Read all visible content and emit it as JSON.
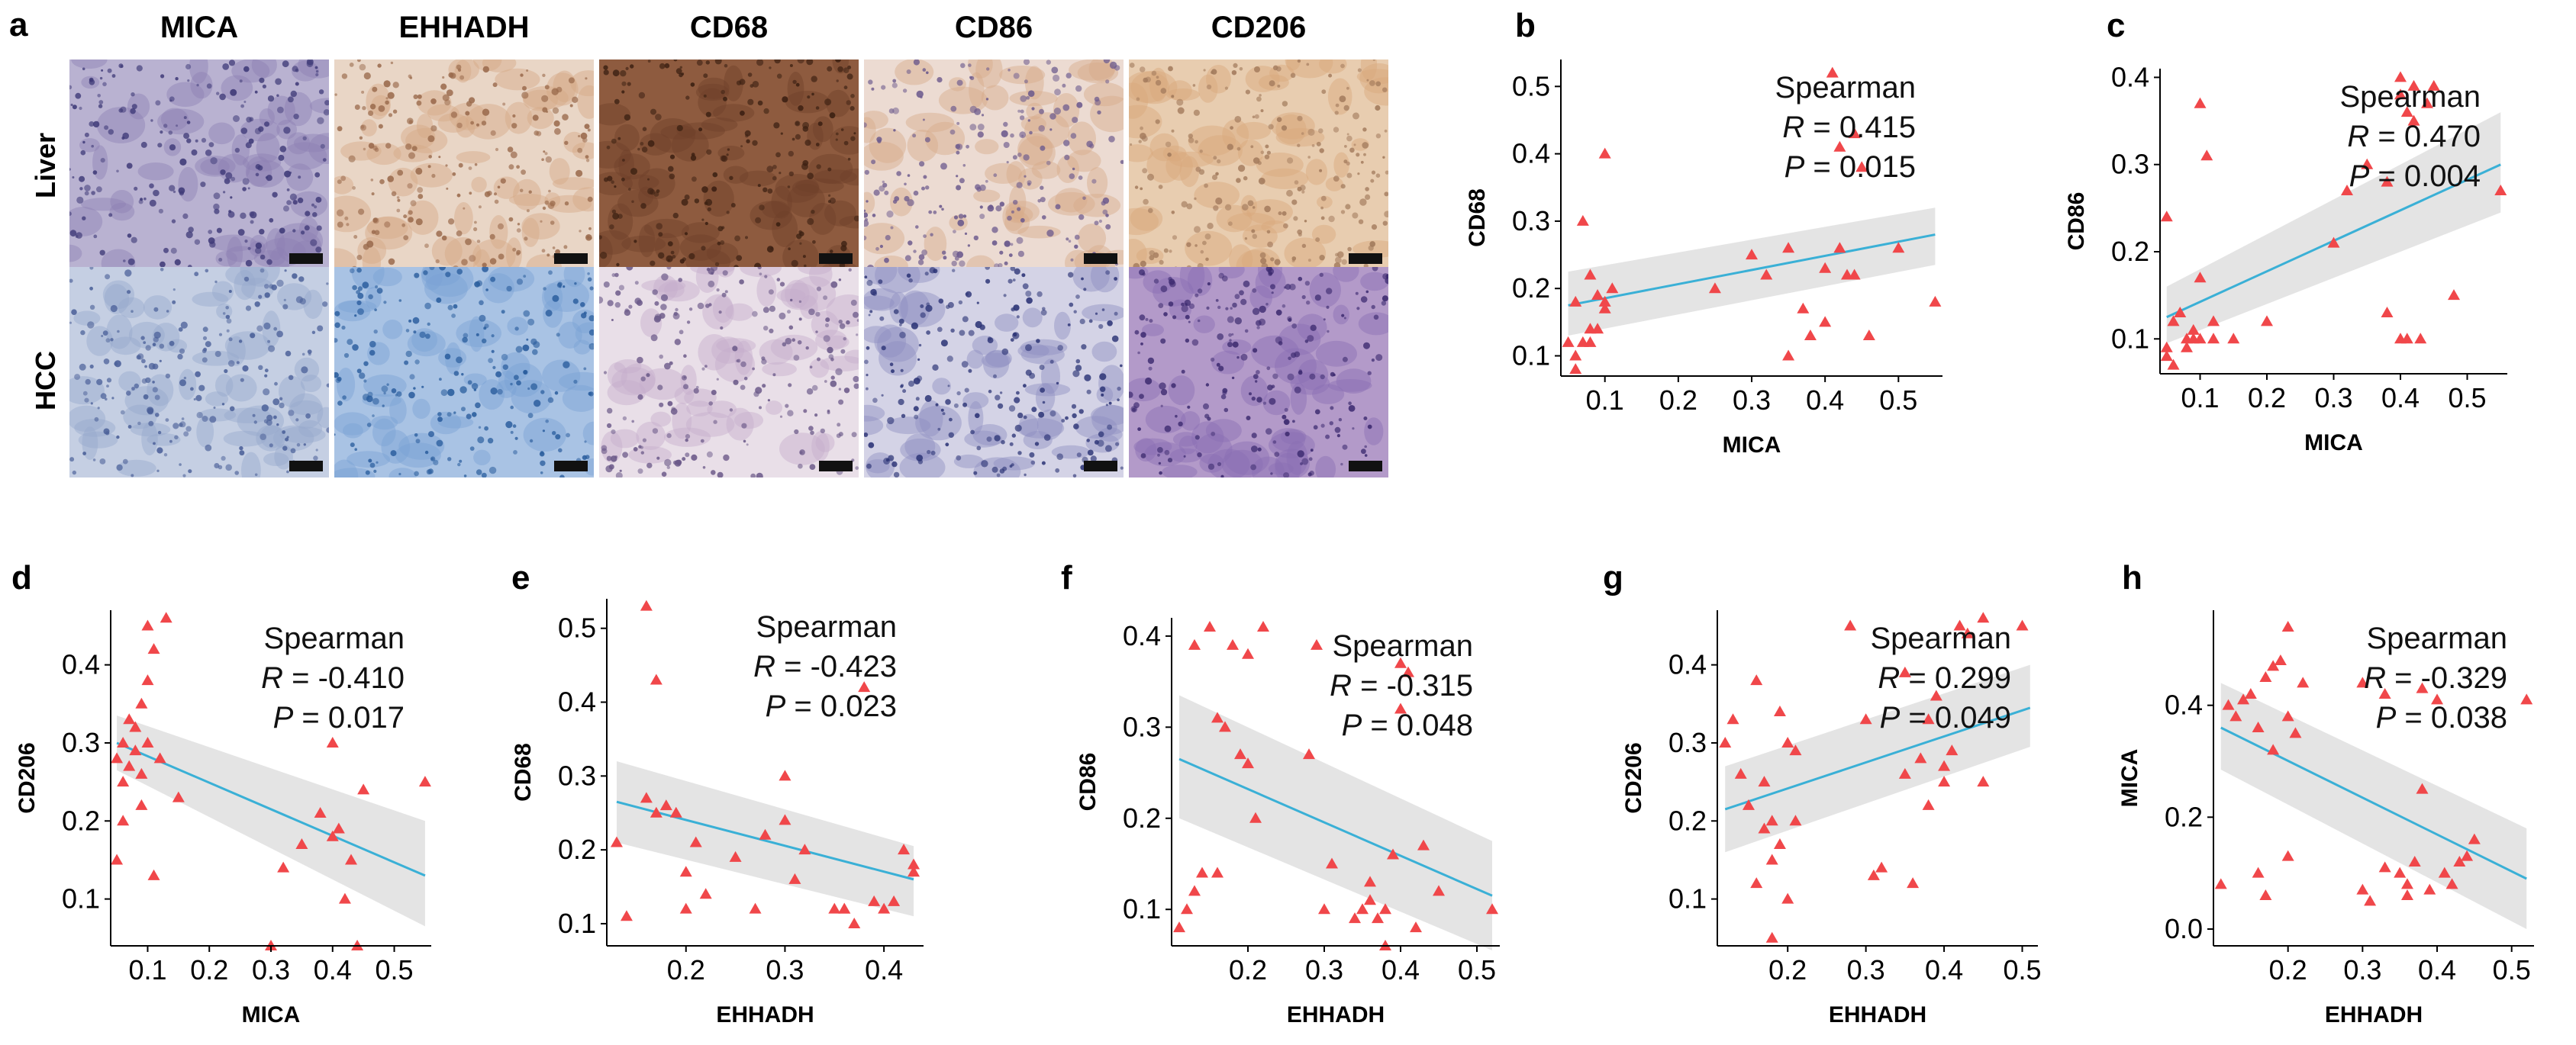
{
  "panel_a": {
    "letter": "a",
    "columns": [
      "MICA",
      "EHHADH",
      "CD68",
      "CD86",
      "CD206"
    ],
    "rows": [
      "Liver",
      "HCC"
    ],
    "tile_colors": {
      "Liver": [
        {
          "base": "#b9b2d1",
          "spot": "#3f3a78",
          "mid": "#8d80b3"
        },
        {
          "base": "#e9d6c6",
          "spot": "#9a6a4c",
          "mid": "#d4a885"
        },
        {
          "base": "#8e5b3f",
          "spot": "#3b2012",
          "mid": "#6e412a"
        },
        {
          "base": "#ecdbd2",
          "spot": "#6c5a8d",
          "mid": "#d6aa8a"
        },
        {
          "base": "#e8cdb0",
          "spot": "#a27a5c",
          "mid": "#d9a97c"
        }
      ],
      "HCC": [
        {
          "base": "#c5cfe3",
          "spot": "#4a5f98",
          "mid": "#96a8cd"
        },
        {
          "base": "#a9c3e4",
          "spot": "#2a5d9d",
          "mid": "#7ba2d4"
        },
        {
          "base": "#e9dfe8",
          "spot": "#6a5888",
          "mid": "#c6aecb"
        },
        {
          "base": "#d4d3e6",
          "spot": "#2c3476",
          "mid": "#8d8fc0"
        },
        {
          "base": "#b39ac9",
          "spot": "#3d2b70",
          "mid": "#8a6fb3"
        }
      ]
    }
  },
  "colors": {
    "points": "#f0474a",
    "fit": "#3ab0d6",
    "band": "#d9d9d9"
  },
  "chart_data": [
    {
      "letter": "b",
      "type": "scatter",
      "xlabel": "MICA",
      "ylabel": "CD68",
      "xlim": [
        0.04,
        0.56
      ],
      "ylim": [
        0.07,
        0.54
      ],
      "xticks": [
        "0.1",
        "0.2",
        "0.3",
        "0.4",
        "0.5"
      ],
      "xtick_values": [
        0.1,
        0.2,
        0.3,
        0.4,
        0.5
      ],
      "yticks": [
        "0.1",
        "0.2",
        "0.3",
        "0.4",
        "0.5"
      ],
      "ytick_values": [
        0.1,
        0.2,
        0.3,
        0.4,
        0.5
      ],
      "stats": {
        "method": "Spearman",
        "r_label": "R",
        "r_value": " = 0.415",
        "p_label": "P",
        "p_value": " = 0.015"
      },
      "fit": {
        "x": [
          0.05,
          0.55
        ],
        "y": [
          0.175,
          0.28
        ],
        "band_upper": [
          0.225,
          0.32
        ],
        "band_lower": [
          0.13,
          0.235
        ]
      },
      "x": [
        0.05,
        0.06,
        0.07,
        0.08,
        0.09,
        0.1,
        0.1,
        0.11,
        0.06,
        0.07,
        0.08,
        0.1,
        0.06,
        0.08,
        0.09,
        0.25,
        0.3,
        0.32,
        0.35,
        0.38,
        0.4,
        0.42,
        0.43,
        0.44,
        0.45,
        0.46,
        0.5,
        0.41,
        0.42,
        0.55,
        0.35,
        0.4,
        0.44,
        0.37
      ],
      "y": [
        0.12,
        0.18,
        0.3,
        0.22,
        0.14,
        0.4,
        0.17,
        0.2,
        0.1,
        0.12,
        0.12,
        0.18,
        0.08,
        0.14,
        0.19,
        0.2,
        0.25,
        0.22,
        0.26,
        0.13,
        0.23,
        0.26,
        0.22,
        0.43,
        0.38,
        0.13,
        0.26,
        0.52,
        0.41,
        0.18,
        0.1,
        0.15,
        0.22,
        0.17
      ]
    },
    {
      "letter": "c",
      "type": "scatter",
      "xlabel": "MICA",
      "ylabel": "CD86",
      "xlim": [
        0.04,
        0.56
      ],
      "ylim": [
        0.06,
        0.41
      ],
      "xticks": [
        "0.1",
        "0.2",
        "0.3",
        "0.4",
        "0.5"
      ],
      "xtick_values": [
        0.1,
        0.2,
        0.3,
        0.4,
        0.5
      ],
      "yticks": [
        "0.1",
        "0.2",
        "0.3",
        "0.4"
      ],
      "ytick_values": [
        0.1,
        0.2,
        0.3,
        0.4
      ],
      "stats": {
        "method": "Spearman",
        "r_label": "R",
        "r_value": " = 0.470",
        "p_label": "P",
        "p_value": " = 0.004"
      },
      "fit": {
        "x": [
          0.05,
          0.55
        ],
        "y": [
          0.125,
          0.3
        ],
        "band_upper": [
          0.16,
          0.36
        ],
        "band_lower": [
          0.095,
          0.245
        ]
      },
      "x": [
        0.05,
        0.06,
        0.07,
        0.05,
        0.08,
        0.09,
        0.1,
        0.1,
        0.11,
        0.12,
        0.05,
        0.06,
        0.08,
        0.09,
        0.1,
        0.12,
        0.15,
        0.2,
        0.3,
        0.32,
        0.35,
        0.38,
        0.4,
        0.42,
        0.45,
        0.4,
        0.41,
        0.42,
        0.44,
        0.55,
        0.48,
        0.38,
        0.4,
        0.41,
        0.43
      ],
      "y": [
        0.09,
        0.12,
        0.13,
        0.24,
        0.1,
        0.11,
        0.17,
        0.37,
        0.31,
        0.1,
        0.08,
        0.07,
        0.09,
        0.1,
        0.1,
        0.12,
        0.1,
        0.12,
        0.21,
        0.27,
        0.3,
        0.28,
        0.4,
        0.39,
        0.39,
        0.38,
        0.36,
        0.35,
        0.37,
        0.27,
        0.15,
        0.13,
        0.1,
        0.1,
        0.1
      ]
    },
    {
      "letter": "d",
      "type": "scatter",
      "xlabel": "MICA",
      "ylabel": "CD206",
      "xlim": [
        0.04,
        0.56
      ],
      "ylim": [
        0.04,
        0.47
      ],
      "xticks": [
        "0.1",
        "0.2",
        "0.3",
        "0.4",
        "0.5"
      ],
      "xtick_values": [
        0.1,
        0.2,
        0.3,
        0.4,
        0.5
      ],
      "yticks": [
        "0.1",
        "0.2",
        "0.3",
        "0.4"
      ],
      "ytick_values": [
        0.1,
        0.2,
        0.3,
        0.4
      ],
      "stats": {
        "method": "Spearman",
        "r_label": "R",
        "r_value": " = -0.410",
        "p_label": "P",
        "p_value": " = 0.017"
      },
      "fit": {
        "x": [
          0.05,
          0.55
        ],
        "y": [
          0.3,
          0.13
        ],
        "band_upper": [
          0.335,
          0.2
        ],
        "band_lower": [
          0.265,
          0.065
        ]
      },
      "x": [
        0.05,
        0.06,
        0.07,
        0.08,
        0.09,
        0.1,
        0.1,
        0.11,
        0.12,
        0.13,
        0.06,
        0.07,
        0.08,
        0.09,
        0.05,
        0.06,
        0.09,
        0.11,
        0.15,
        0.1,
        0.3,
        0.35,
        0.38,
        0.4,
        0.42,
        0.43,
        0.45,
        0.55,
        0.32,
        0.41,
        0.44,
        0.4
      ],
      "y": [
        0.28,
        0.3,
        0.27,
        0.32,
        0.35,
        0.3,
        0.45,
        0.42,
        0.28,
        0.46,
        0.25,
        0.33,
        0.29,
        0.26,
        0.15,
        0.2,
        0.22,
        0.13,
        0.23,
        0.38,
        0.04,
        0.17,
        0.21,
        0.3,
        0.1,
        0.15,
        0.24,
        0.25,
        0.14,
        0.19,
        0.04,
        0.18
      ]
    },
    {
      "letter": "e",
      "type": "scatter",
      "xlabel": "EHHADH",
      "ylabel": "CD68",
      "xlim": [
        0.12,
        0.44
      ],
      "ylim": [
        0.07,
        0.54
      ],
      "xticks": [
        "0.2",
        "0.3",
        "0.4"
      ],
      "xtick_values": [
        0.2,
        0.3,
        0.4
      ],
      "yticks": [
        "0.1",
        "0.2",
        "0.3",
        "0.4",
        "0.5"
      ],
      "ytick_values": [
        0.1,
        0.2,
        0.3,
        0.4,
        0.5
      ],
      "stats": {
        "method": "Spearman",
        "r_label": "R",
        "r_value": " = -0.423",
        "p_label": "P",
        "p_value": " = 0.023"
      },
      "fit": {
        "x": [
          0.13,
          0.43
        ],
        "y": [
          0.265,
          0.16
        ],
        "band_upper": [
          0.32,
          0.205
        ],
        "band_lower": [
          0.21,
          0.11
        ]
      },
      "x": [
        0.13,
        0.14,
        0.16,
        0.17,
        0.17,
        0.18,
        0.19,
        0.2,
        0.21,
        0.22,
        0.16,
        0.2,
        0.25,
        0.27,
        0.28,
        0.3,
        0.31,
        0.32,
        0.35,
        0.36,
        0.37,
        0.38,
        0.39,
        0.4,
        0.41,
        0.42,
        0.43,
        0.43,
        0.36,
        0.3
      ],
      "y": [
        0.21,
        0.11,
        0.53,
        0.43,
        0.25,
        0.26,
        0.25,
        0.17,
        0.21,
        0.14,
        0.27,
        0.12,
        0.19,
        0.12,
        0.22,
        0.3,
        0.16,
        0.2,
        0.12,
        0.12,
        0.1,
        0.42,
        0.13,
        0.12,
        0.13,
        0.2,
        0.17,
        0.18,
        0.12,
        0.24
      ]
    },
    {
      "letter": "f",
      "type": "scatter",
      "xlabel": "EHHADH",
      "ylabel": "CD86",
      "xlim": [
        0.1,
        0.53
      ],
      "ylim": [
        0.06,
        0.42
      ],
      "xticks": [
        "0.2",
        "0.3",
        "0.4",
        "0.5"
      ],
      "xtick_values": [
        0.2,
        0.3,
        0.4,
        0.5
      ],
      "yticks": [
        "0.1",
        "0.2",
        "0.3",
        "0.4"
      ],
      "ytick_values": [
        0.1,
        0.2,
        0.3,
        0.4
      ],
      "stats": {
        "method": "Spearman",
        "r_label": "R",
        "r_value": " = -0.315",
        "p_label": "P",
        "p_value": " = 0.048"
      },
      "fit": {
        "x": [
          0.11,
          0.52
        ],
        "y": [
          0.265,
          0.115
        ],
        "band_upper": [
          0.335,
          0.175
        ],
        "band_lower": [
          0.2,
          0.055
        ]
      },
      "x": [
        0.11,
        0.12,
        0.13,
        0.14,
        0.15,
        0.16,
        0.17,
        0.18,
        0.19,
        0.2,
        0.2,
        0.21,
        0.22,
        0.13,
        0.16,
        0.28,
        0.3,
        0.31,
        0.35,
        0.36,
        0.37,
        0.38,
        0.39,
        0.4,
        0.41,
        0.42,
        0.43,
        0.45,
        0.52,
        0.38,
        0.34,
        0.29,
        0.4,
        0.36
      ],
      "y": [
        0.08,
        0.1,
        0.39,
        0.14,
        0.41,
        0.31,
        0.3,
        0.39,
        0.27,
        0.26,
        0.38,
        0.2,
        0.41,
        0.12,
        0.14,
        0.27,
        0.1,
        0.15,
        0.1,
        0.11,
        0.09,
        0.1,
        0.16,
        0.32,
        0.36,
        0.08,
        0.17,
        0.12,
        0.1,
        0.06,
        0.09,
        0.39,
        0.37,
        0.13
      ]
    },
    {
      "letter": "g",
      "type": "scatter",
      "xlabel": "EHHADH",
      "ylabel": "CD206",
      "xlim": [
        0.11,
        0.52
      ],
      "ylim": [
        0.04,
        0.47
      ],
      "xticks": [
        "0.2",
        "0.3",
        "0.4",
        "0.5"
      ],
      "xtick_values": [
        0.2,
        0.3,
        0.4,
        0.5
      ],
      "yticks": [
        "0.1",
        "0.2",
        "0.3",
        "0.4"
      ],
      "ytick_values": [
        0.1,
        0.2,
        0.3,
        0.4
      ],
      "stats": {
        "method": "Spearman",
        "r_label": "R",
        "r_value": " = 0.299",
        "p_label": "P",
        "p_value": " = 0.049"
      },
      "fit": {
        "x": [
          0.12,
          0.51
        ],
        "y": [
          0.215,
          0.345
        ],
        "band_upper": [
          0.27,
          0.4
        ],
        "band_lower": [
          0.16,
          0.295
        ]
      },
      "x": [
        0.12,
        0.13,
        0.14,
        0.15,
        0.16,
        0.17,
        0.17,
        0.18,
        0.18,
        0.19,
        0.2,
        0.2,
        0.21,
        0.21,
        0.16,
        0.18,
        0.19,
        0.28,
        0.3,
        0.31,
        0.32,
        0.35,
        0.36,
        0.37,
        0.38,
        0.39,
        0.4,
        0.41,
        0.42,
        0.43,
        0.45,
        0.45,
        0.5,
        0.4,
        0.35,
        0.38
      ],
      "y": [
        0.3,
        0.33,
        0.26,
        0.22,
        0.38,
        0.25,
        0.19,
        0.2,
        0.15,
        0.34,
        0.3,
        0.1,
        0.29,
        0.2,
        0.12,
        0.05,
        0.17,
        0.45,
        0.33,
        0.13,
        0.14,
        0.26,
        0.12,
        0.28,
        0.33,
        0.36,
        0.25,
        0.29,
        0.45,
        0.44,
        0.25,
        0.46,
        0.45,
        0.27,
        0.39,
        0.22
      ]
    },
    {
      "letter": "h",
      "type": "scatter",
      "xlabel": "EHHADH",
      "ylabel": "MICA",
      "xlim": [
        0.1,
        0.53
      ],
      "ylim": [
        -0.03,
        0.57
      ],
      "xticks": [
        "0.2",
        "0.3",
        "0.4",
        "0.5"
      ],
      "xtick_values": [
        0.2,
        0.3,
        0.4,
        0.5
      ],
      "yticks": [
        "0.0",
        "0.2",
        "0.4"
      ],
      "ytick_values": [
        0.0,
        0.2,
        0.4
      ],
      "stats": {
        "method": "Spearman",
        "r_label": "R",
        "r_value": " = -0.329",
        "p_label": "P",
        "p_value": " = 0.038"
      },
      "fit": {
        "x": [
          0.11,
          0.52
        ],
        "y": [
          0.36,
          0.09
        ],
        "band_upper": [
          0.44,
          0.18
        ],
        "band_lower": [
          0.285,
          0.0
        ]
      },
      "x": [
        0.11,
        0.12,
        0.13,
        0.14,
        0.15,
        0.16,
        0.17,
        0.18,
        0.19,
        0.2,
        0.2,
        0.21,
        0.22,
        0.16,
        0.17,
        0.18,
        0.2,
        0.3,
        0.31,
        0.33,
        0.35,
        0.36,
        0.37,
        0.38,
        0.39,
        0.4,
        0.41,
        0.42,
        0.43,
        0.44,
        0.45,
        0.52,
        0.38,
        0.36,
        0.3,
        0.33
      ],
      "y": [
        0.08,
        0.4,
        0.38,
        0.41,
        0.42,
        0.36,
        0.45,
        0.47,
        0.48,
        0.54,
        0.38,
        0.35,
        0.44,
        0.1,
        0.06,
        0.32,
        0.13,
        0.07,
        0.05,
        0.11,
        0.1,
        0.06,
        0.12,
        0.43,
        0.07,
        0.41,
        0.1,
        0.08,
        0.12,
        0.13,
        0.16,
        0.41,
        0.25,
        0.08,
        0.44,
        0.42
      ]
    }
  ]
}
